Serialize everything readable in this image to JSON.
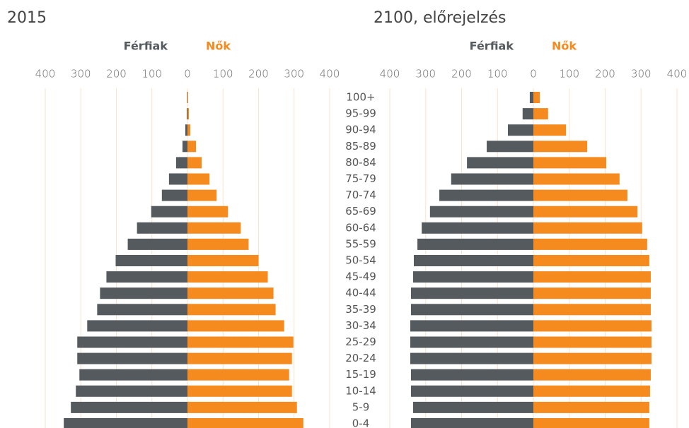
{
  "chart_data": [
    {
      "type": "bar",
      "orientation": "horizontal",
      "title": "2015",
      "categories": [
        "100+",
        "95-99",
        "90-94",
        "85-89",
        "80-84",
        "75-79",
        "70-74",
        "65-69",
        "60-64",
        "55-59",
        "50-54",
        "45-49",
        "40-44",
        "35-39",
        "30-34",
        "25-29",
        "20-24",
        "15-19",
        "10-14",
        "5-9",
        "0-4"
      ],
      "series": [
        {
          "name": "Férfiak",
          "color": "#555a5e",
          "values": [
            -1,
            -2,
            -6,
            -14,
            -32,
            -52,
            -72,
            -102,
            -142,
            -168,
            -202,
            -228,
            -246,
            -254,
            -282,
            -310,
            -310,
            -304,
            -314,
            -328,
            -348
          ]
        },
        {
          "name": "Nők",
          "color": "#f58a1f",
          "values": [
            2,
            4,
            8,
            24,
            40,
            62,
            82,
            114,
            150,
            172,
            200,
            226,
            242,
            248,
            272,
            298,
            294,
            286,
            294,
            308,
            326
          ]
        }
      ],
      "xlim": [
        -400,
        400
      ],
      "xticks": [
        {
          "value": -400,
          "label": "400"
        },
        {
          "value": -300,
          "label": "300"
        },
        {
          "value": -200,
          "label": "200"
        },
        {
          "value": -100,
          "label": "100"
        },
        0,
        100,
        200,
        300,
        400
      ],
      "grid": true,
      "grid_color": "#fbe3c9"
    },
    {
      "type": "bar",
      "orientation": "horizontal",
      "title": "2100, előrejelzés",
      "series": [
        {
          "name": "Férfiak",
          "color": "#555a5e",
          "values": [
            -10,
            -30,
            -71,
            -130,
            -185,
            -229,
            -262,
            -288,
            -311,
            -323,
            -333,
            -335,
            -341,
            -341,
            -343,
            -343,
            -343,
            -341,
            -341,
            -335,
            -341
          ]
        },
        {
          "name": "Nők",
          "color": "#f58a1f",
          "values": [
            18,
            41,
            91,
            150,
            203,
            240,
            262,
            290,
            303,
            317,
            323,
            327,
            327,
            327,
            329,
            329,
            329,
            327,
            325,
            323,
            323
          ]
        }
      ],
      "xlim": [
        -400,
        400
      ],
      "xticks": [
        {
          "value": -400,
          "label": "400"
        },
        {
          "value": -300,
          "label": "300"
        },
        {
          "value": -200,
          "label": "200"
        },
        {
          "value": -100,
          "label": "100"
        },
        0,
        100,
        200,
        300,
        400
      ],
      "grid": true,
      "grid_color": "#fbe3c9"
    }
  ]
}
